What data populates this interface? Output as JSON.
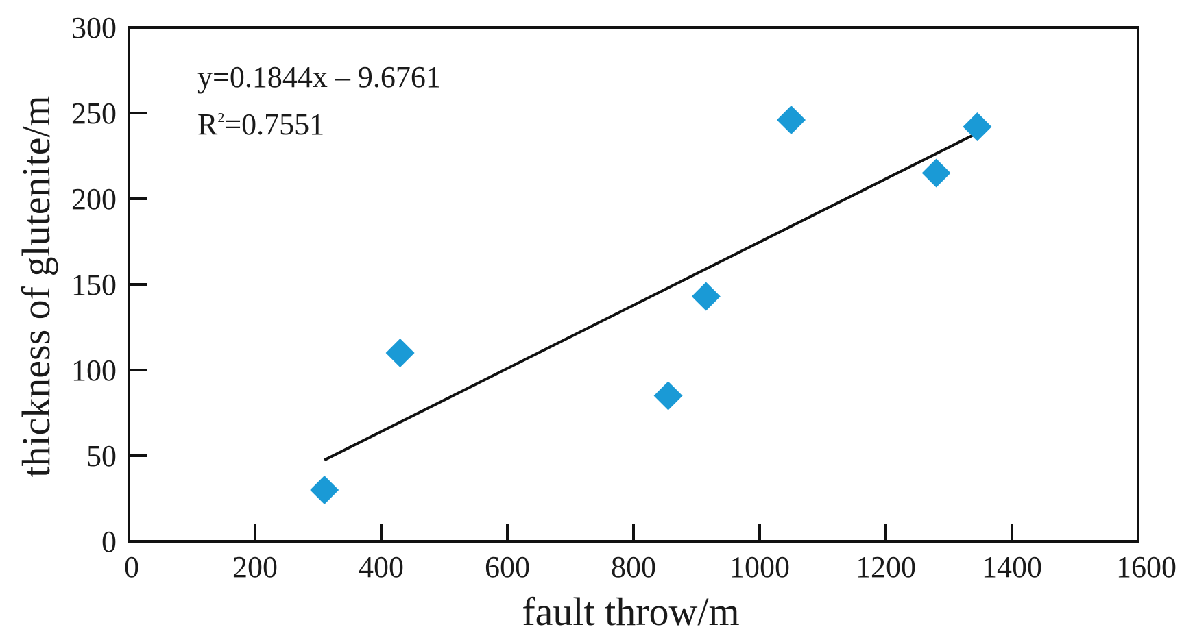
{
  "chart_data": {
    "type": "scatter",
    "xlabel": "fault throw/m",
    "ylabel": "thickness of glutenite/m",
    "xlim": [
      0,
      1600
    ],
    "ylim": [
      0,
      300
    ],
    "x_ticks": [
      0,
      200,
      400,
      600,
      800,
      1000,
      1200,
      1400,
      1600
    ],
    "y_ticks": [
      0,
      50,
      100,
      150,
      200,
      250,
      300
    ],
    "series": [
      {
        "marker": "diamond",
        "color": "#1a9ad6",
        "points": [
          {
            "x": 310,
            "y": 30
          },
          {
            "x": 430,
            "y": 110
          },
          {
            "x": 855,
            "y": 85
          },
          {
            "x": 915,
            "y": 143
          },
          {
            "x": 1050,
            "y": 246
          },
          {
            "x": 1280,
            "y": 215
          },
          {
            "x": 1345,
            "y": 242
          }
        ]
      }
    ],
    "trendline": {
      "slope": 0.1844,
      "intercept": -9.6761,
      "x_range": [
        310,
        1345
      ],
      "color": "#111111"
    },
    "annotations": {
      "equation": "y=0.1844x – 9.6761",
      "r2_prefix": "R",
      "r2_sup": "2",
      "r2_value": "=0.7551"
    },
    "grid": false,
    "legend": "none"
  }
}
